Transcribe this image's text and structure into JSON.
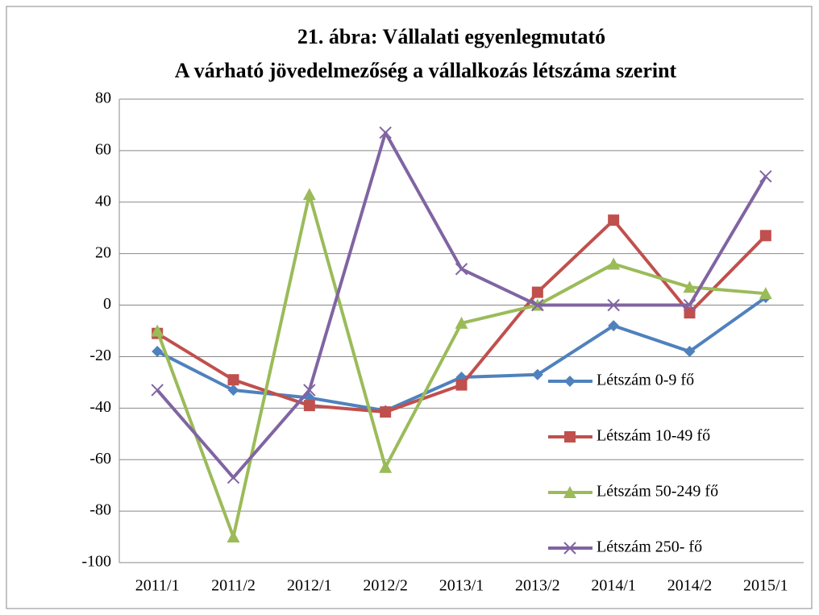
{
  "chart_data": {
    "type": "line",
    "title": "21. ábra: Vállalati egyenlegmutató",
    "subtitle": "A várható jövedelmezőség a vállalkozás létszáma szerint",
    "categories": [
      "2011/1",
      "2011/2",
      "2012/1",
      "2012/2",
      "2013/1",
      "2013/2",
      "2014/1",
      "2014/2",
      "2015/1"
    ],
    "series": [
      {
        "name": "Létszám 0-9 fő",
        "color": "#4f81bd",
        "marker": "diamond",
        "values": [
          -18,
          -33,
          -36,
          -41,
          -28,
          -27,
          -8,
          -18,
          3
        ]
      },
      {
        "name": "Létszám 10-49 fő",
        "color": "#c0504d",
        "marker": "square",
        "values": [
          -11,
          -29,
          -39,
          -41.5,
          -31,
          5,
          33,
          -3,
          27
        ]
      },
      {
        "name": "Létszám 50-249 fő",
        "color": "#9bbb59",
        "marker": "triangle",
        "values": [
          -10,
          -90,
          43,
          -63,
          -7,
          0,
          16,
          7,
          4.5
        ]
      },
      {
        "name": "Létszám 250- fő",
        "color": "#8064a2",
        "marker": "x",
        "values": [
          -33,
          -67,
          -33,
          67,
          14,
          0,
          0,
          0,
          50
        ]
      }
    ],
    "ylim": [
      -100,
      80
    ],
    "yticks": [
      -100,
      -80,
      -60,
      -40,
      -20,
      0,
      20,
      40,
      60,
      80
    ],
    "grid": true,
    "legend": "right"
  }
}
